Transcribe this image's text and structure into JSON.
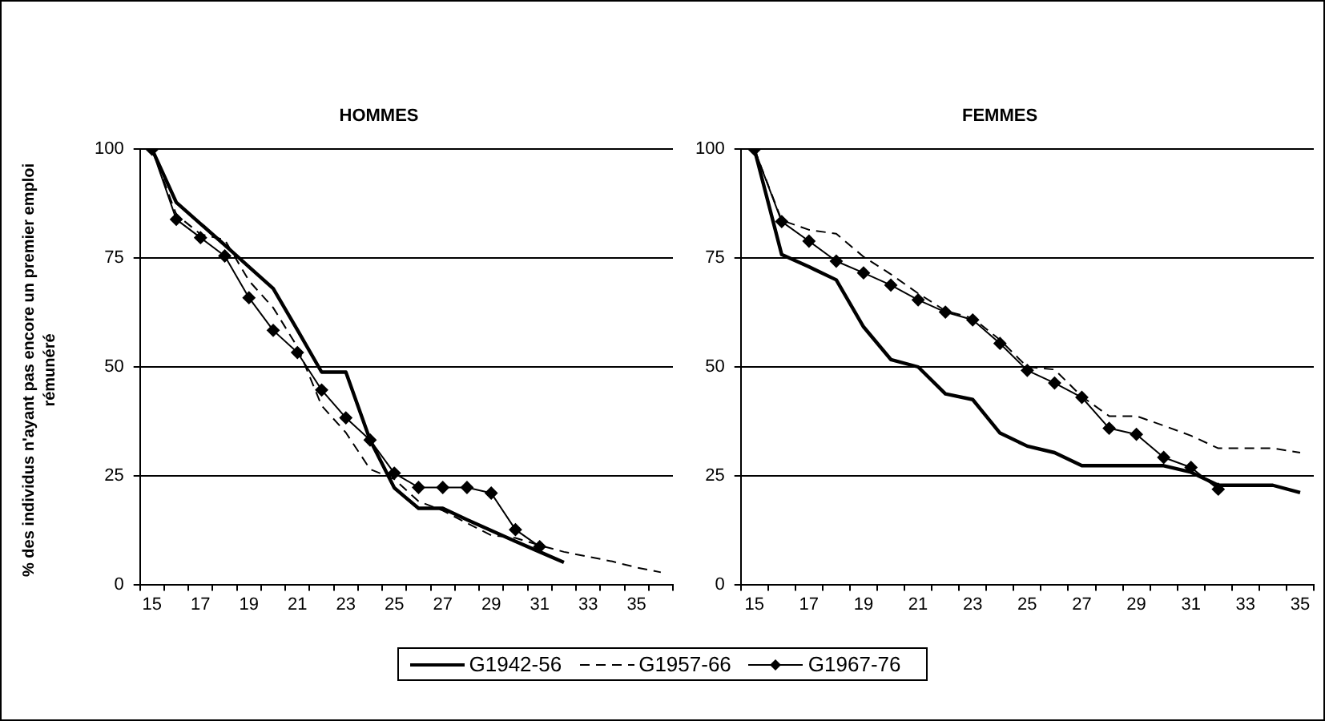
{
  "chart_data": [
    {
      "type": "line",
      "title": "HOMMES",
      "ylabel": "% des individus n'ayant pas encore un premier emploi rémunéré",
      "categories": [
        "15",
        null,
        "17",
        null,
        "19",
        null,
        "21",
        null,
        "23",
        null,
        "25",
        null,
        "27",
        null,
        "29",
        null,
        "31",
        null,
        "33",
        null,
        "35",
        null
      ],
      "ylim": [
        0,
        100
      ],
      "yticks": [
        0,
        25,
        50,
        75,
        100
      ],
      "grid": "y",
      "legend": "bottom",
      "series": [
        {
          "name": "G1942-56",
          "color": "#000000",
          "line_style": "solid",
          "marker": "none",
          "values": [
            100,
            87.8,
            82.9,
            78,
            73,
            68,
            58.5,
            48.8,
            48.8,
            33.2,
            22.2,
            17.5,
            17.5,
            14.9,
            12.4,
            9.9,
            7.5,
            5.1,
            null,
            null,
            null,
            null
          ]
        },
        {
          "name": "G1957-66",
          "color": "#000000",
          "line_style": "dashed",
          "marker": "none",
          "values": [
            100,
            85,
            80.5,
            79.2,
            69.8,
            63.6,
            54.6,
            41.1,
            34.9,
            26.5,
            24.2,
            19.1,
            17,
            14.1,
            11.3,
            10.7,
            9,
            7.5,
            6.4,
            5.3,
            3.9,
            2.8
          ]
        },
        {
          "name": "G1967-76",
          "color": "#000000",
          "line_style": "solid",
          "marker": "diamond",
          "values": [
            100,
            83.9,
            79.7,
            75.5,
            65.9,
            58.4,
            53.3,
            44.7,
            38.3,
            33.2,
            25.6,
            22.3,
            22.3,
            22.3,
            21,
            12.6,
            8.7,
            null,
            null,
            null,
            null,
            null
          ]
        }
      ]
    },
    {
      "type": "line",
      "title": "FEMMES",
      "categories": [
        "15",
        null,
        "17",
        null,
        "19",
        null,
        "21",
        null,
        "23",
        null,
        "25",
        null,
        "27",
        null,
        "29",
        null,
        "31",
        null,
        "33",
        null,
        "35"
      ],
      "ylim": [
        0,
        100
      ],
      "yticks": [
        0,
        25,
        50,
        75,
        100
      ],
      "grid": "y",
      "series": [
        {
          "color": "#000000",
          "line_style": "solid",
          "marker": "none",
          "values": [
            100,
            75.8,
            73,
            70,
            59.2,
            51.7,
            50,
            43.8,
            42.5,
            34.8,
            31.8,
            30.3,
            27.3,
            27.3,
            27.3,
            27.3,
            25.8,
            22.8,
            22.8,
            22.8,
            21.1
          ]
        },
        {
          "color": "#000000",
          "line_style": "dashed",
          "marker": "none",
          "values": [
            100,
            83.7,
            81.5,
            80.6,
            75.3,
            71.3,
            66.9,
            62.9,
            61.2,
            56.2,
            50,
            49.4,
            43.2,
            38.7,
            38.7,
            36.5,
            34.2,
            31.3,
            31.3,
            31.3,
            30.3
          ]
        },
        {
          "color": "#000000",
          "line_style": "solid",
          "marker": "diamond",
          "values": [
            100,
            83.4,
            78.9,
            74.3,
            71.6,
            68.8,
            65.4,
            62.6,
            60.8,
            55.4,
            49.2,
            46.3,
            43,
            35.9,
            34.5,
            29.2,
            26.9,
            21.9,
            null,
            null,
            null
          ]
        }
      ]
    }
  ]
}
